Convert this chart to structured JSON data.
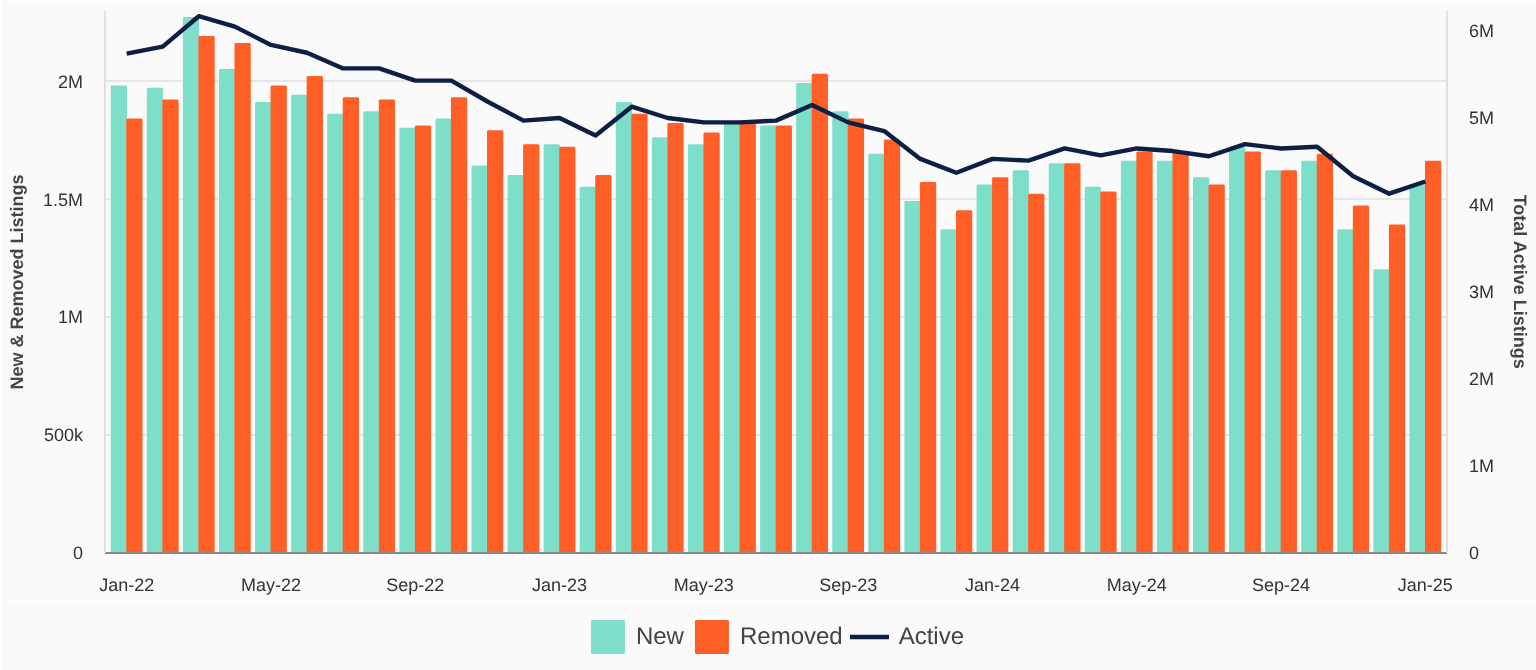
{
  "chart_data": {
    "type": "bar",
    "ylabel": "New & Removed Listings",
    "y2label": "Total Active Listings",
    "categories": [
      "Jan-22",
      null,
      null,
      null,
      "May-22",
      null,
      null,
      null,
      "Sep-22",
      null,
      null,
      null,
      "Jan-23",
      null,
      null,
      null,
      "May-23",
      null,
      null,
      null,
      "Sep-23",
      null,
      null,
      null,
      "Jan-24",
      null,
      null,
      null,
      "May-24",
      null,
      null,
      null,
      "Sep-24",
      null,
      null,
      null,
      "Jan-25"
    ],
    "series": [
      {
        "name": "New",
        "color": "#7ddfc9",
        "values": [
          1980000,
          1970000,
          2270000,
          2050000,
          1910000,
          1940000,
          1860000,
          1870000,
          1800000,
          1840000,
          1640000,
          1600000,
          1730000,
          1550000,
          1910000,
          1760000,
          1730000,
          1820000,
          1810000,
          1990000,
          1870000,
          1690000,
          1490000,
          1370000,
          1560000,
          1620000,
          1650000,
          1550000,
          1660000,
          1660000,
          1590000,
          1720000,
          1620000,
          1660000,
          1370000,
          1200000,
          1560000
        ]
      },
      {
        "name": "Removed",
        "color": "#ff5f26",
        "values": [
          1840000,
          1920000,
          2190000,
          2160000,
          1980000,
          2020000,
          1930000,
          1920000,
          1810000,
          1930000,
          1790000,
          1730000,
          1720000,
          1600000,
          1860000,
          1820000,
          1780000,
          1830000,
          1810000,
          2030000,
          1840000,
          1750000,
          1570000,
          1450000,
          1590000,
          1520000,
          1650000,
          1530000,
          1700000,
          1700000,
          1560000,
          1700000,
          1620000,
          1690000,
          1470000,
          1390000,
          1660000
        ]
      },
      {
        "name": "Active",
        "type": "line",
        "axis": "y2",
        "color": "#0d1f44",
        "values": [
          5740000,
          5820000,
          6170000,
          6050000,
          5840000,
          5750000,
          5570000,
          5570000,
          5430000,
          5430000,
          5190000,
          4970000,
          5000000,
          4800000,
          5130000,
          5000000,
          4950000,
          4950000,
          4970000,
          5150000,
          4950000,
          4850000,
          4530000,
          4370000,
          4530000,
          4510000,
          4650000,
          4570000,
          4650000,
          4620000,
          4560000,
          4700000,
          4650000,
          4670000,
          4330000,
          4130000,
          4270000
        ]
      }
    ],
    "ylim": [
      0,
      2300000
    ],
    "yticks": [
      0,
      {
        "value": 500000,
        "label": "500k"
      },
      {
        "value": 1000000,
        "label": "1M"
      },
      {
        "value": 1500000,
        "label": "1.5M"
      },
      {
        "value": 2000000,
        "label": "2M"
      }
    ],
    "y2lim": [
      0,
      6230000
    ],
    "y2ticks": [
      0,
      {
        "value": 1000000,
        "label": "1M"
      },
      {
        "value": 2000000,
        "label": "2M"
      },
      {
        "value": 3000000,
        "label": "3M"
      },
      {
        "value": 4000000,
        "label": "4M"
      },
      {
        "value": 5000000,
        "label": "5M"
      },
      {
        "value": 6000000,
        "label": "6M"
      }
    ],
    "grid": "y",
    "legend": "bottom",
    "marker": "none",
    "line_style": "solid"
  }
}
